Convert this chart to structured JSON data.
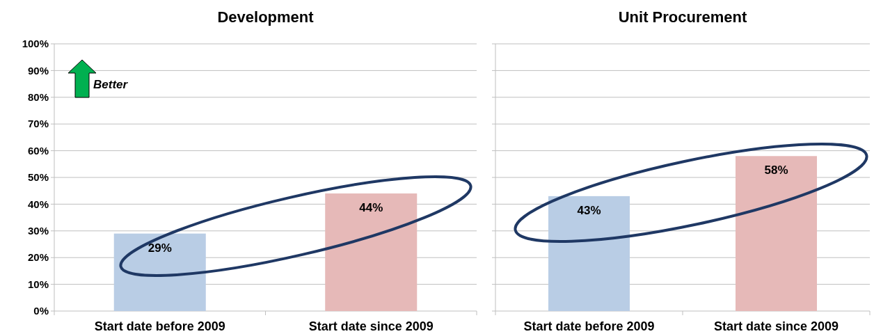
{
  "chart_data": [
    {
      "type": "bar",
      "title": "Development",
      "categories": [
        "Start date before 2009",
        "Start date since 2009"
      ],
      "values": [
        29,
        44
      ],
      "colors": [
        "#b9cde5",
        "#e6b9b8"
      ],
      "value_labels": [
        "29%",
        "44%"
      ],
      "ylim": [
        0,
        100
      ],
      "yticks": [
        {
          "value": 0,
          "label": "0%"
        },
        {
          "value": 10,
          "label": "10%"
        },
        {
          "value": 20,
          "label": "20%"
        },
        {
          "value": 30,
          "label": "30%"
        },
        {
          "value": 40,
          "label": "40%"
        },
        {
          "value": 50,
          "label": "50%"
        },
        {
          "value": 60,
          "label": "60%"
        },
        {
          "value": 70,
          "label": "70%"
        },
        {
          "value": 80,
          "label": "80%"
        },
        {
          "value": 90,
          "label": "90%"
        },
        {
          "value": 100,
          "label": "100%"
        }
      ],
      "grid": "y",
      "annotations": [
        "Better"
      ]
    },
    {
      "type": "bar",
      "title": "Unit Procurement",
      "categories": [
        "Start date before 2009",
        "Start date since 2009"
      ],
      "values": [
        43,
        58
      ],
      "colors": [
        "#b9cde5",
        "#e6b9b8"
      ],
      "value_labels": [
        "43%",
        "58%"
      ],
      "ylim": [
        0,
        100
      ],
      "yticks": [
        {
          "value": 0,
          "label": null
        },
        {
          "value": 10,
          "label": null
        },
        {
          "value": 20,
          "label": null
        },
        {
          "value": 30,
          "label": null
        },
        {
          "value": 40,
          "label": null
        },
        {
          "value": 50,
          "label": null
        },
        {
          "value": 60,
          "label": null
        },
        {
          "value": 70,
          "label": null
        },
        {
          "value": 80,
          "label": null
        },
        {
          "value": 90,
          "label": null
        },
        {
          "value": 100,
          "label": null
        }
      ],
      "grid": "y",
      "tick_labels": "x"
    }
  ]
}
